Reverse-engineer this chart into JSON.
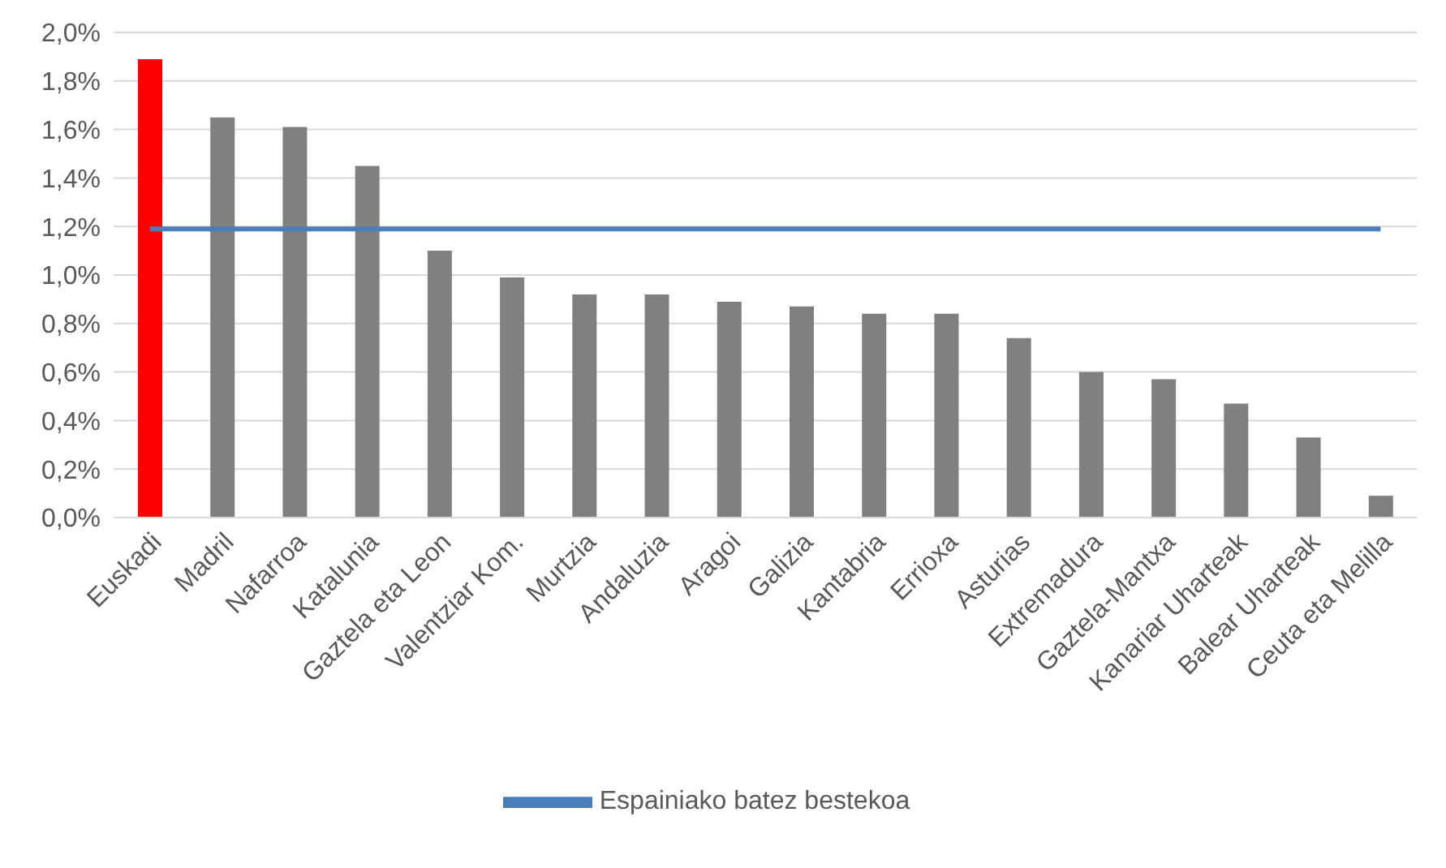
{
  "chart_data": {
    "type": "bar",
    "categories": [
      "Euskadi",
      "Madril",
      "Nafarroa",
      "Katalunia",
      "Gaztela eta Leon",
      "Valentziar Kom.",
      "Murtzia",
      "Andaluzia",
      "Aragoi",
      "Galizia",
      "Kantabria",
      "Errioxa",
      "Asturias",
      "Extremadura",
      "Gaztela-Mantxa",
      "Kanariar Uharteak",
      "Balear Uharteak",
      "Ceuta eta Melilla"
    ],
    "series": [
      {
        "colors": [
          "#ff0000",
          "#808080",
          "#808080",
          "#808080",
          "#808080",
          "#808080",
          "#808080",
          "#808080",
          "#808080",
          "#808080",
          "#808080",
          "#808080",
          "#808080",
          "#808080",
          "#808080",
          "#808080",
          "#808080",
          "#808080"
        ],
        "values": [
          1.89,
          1.65,
          1.61,
          1.45,
          1.1,
          0.99,
          0.92,
          0.92,
          0.89,
          0.87,
          0.84,
          0.84,
          0.74,
          0.6,
          0.57,
          0.47,
          0.33,
          0.09
        ]
      },
      {
        "type": "line",
        "name": "Espainiako batez bestekoa",
        "color": "#4a7ebb",
        "values": [
          1.19,
          1.19,
          1.19,
          1.19,
          1.19,
          1.19,
          1.19,
          1.19,
          1.19,
          1.19,
          1.19,
          1.19,
          1.19,
          1.19,
          1.19,
          1.19,
          1.19,
          1.19
        ]
      }
    ],
    "ylim": [
      0,
      2.0
    ],
    "yticks": [
      {
        "value": 0,
        "label": "0,0%"
      },
      {
        "value": 0.2,
        "label": "0,2%"
      },
      {
        "value": 0.4,
        "label": "0,4%"
      },
      {
        "value": 0.6,
        "label": "0,6%"
      },
      {
        "value": 0.8,
        "label": "0,8%"
      },
      {
        "value": 1.0,
        "label": "1,0%"
      },
      {
        "value": 1.2,
        "label": "1,2%"
      },
      {
        "value": 1.4,
        "label": "1,4%"
      },
      {
        "value": 1.6,
        "label": "1,6%"
      },
      {
        "value": 1.8,
        "label": "1,8%"
      },
      {
        "value": 2.0,
        "label": "2,0%"
      }
    ],
    "grid": "y",
    "legend": "bottom",
    "marker": "none"
  }
}
